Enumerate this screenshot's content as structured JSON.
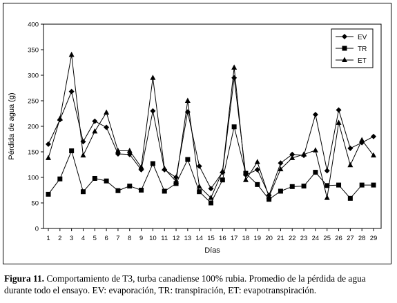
{
  "chart_data": {
    "type": "line",
    "xlabel": "Días",
    "ylabel": "Pérdida de agua (g)",
    "x": [
      1,
      2,
      3,
      4,
      5,
      6,
      7,
      8,
      9,
      10,
      11,
      12,
      13,
      14,
      15,
      16,
      17,
      18,
      19,
      20,
      21,
      22,
      23,
      24,
      25,
      26,
      27,
      28,
      29
    ],
    "ylim": [
      0,
      400
    ],
    "yticks": [
      0,
      50,
      100,
      150,
      200,
      250,
      300,
      350,
      400
    ],
    "grid": false,
    "legend_position": "top-right",
    "series": [
      {
        "name": "EV",
        "marker": "diamond",
        "values": [
          165,
          213,
          268,
          170,
          210,
          198,
          146,
          145,
          115,
          230,
          115,
          100,
          228,
          122,
          78,
          110,
          295,
          105,
          115,
          65,
          128,
          145,
          143,
          223,
          113,
          232,
          157,
          168,
          180
        ]
      },
      {
        "name": "TR",
        "marker": "square",
        "values": [
          67,
          97,
          152,
          72,
          98,
          93,
          74,
          83,
          75,
          127,
          73,
          88,
          135,
          72,
          50,
          95,
          199,
          108,
          86,
          57,
          73,
          82,
          83,
          110,
          84,
          85,
          59,
          85,
          85
        ]
      },
      {
        "name": "ET",
        "marker": "triangle",
        "values": [
          138,
          215,
          340,
          143,
          190,
          227,
          152,
          152,
          120,
          295,
          117,
          92,
          250,
          82,
          60,
          112,
          315,
          95,
          130,
          62,
          116,
          138,
          145,
          153,
          60,
          207,
          124,
          173,
          143
        ]
      }
    ]
  },
  "caption": {
    "label": "Figura 11.",
    "text": " Comportamiento de T3, turba canadiense 100% rubia. Promedio de la pérdida de agua durante todo el ensayo. EV: evaporación, TR: transpiración, ET: evapotranspiración."
  }
}
